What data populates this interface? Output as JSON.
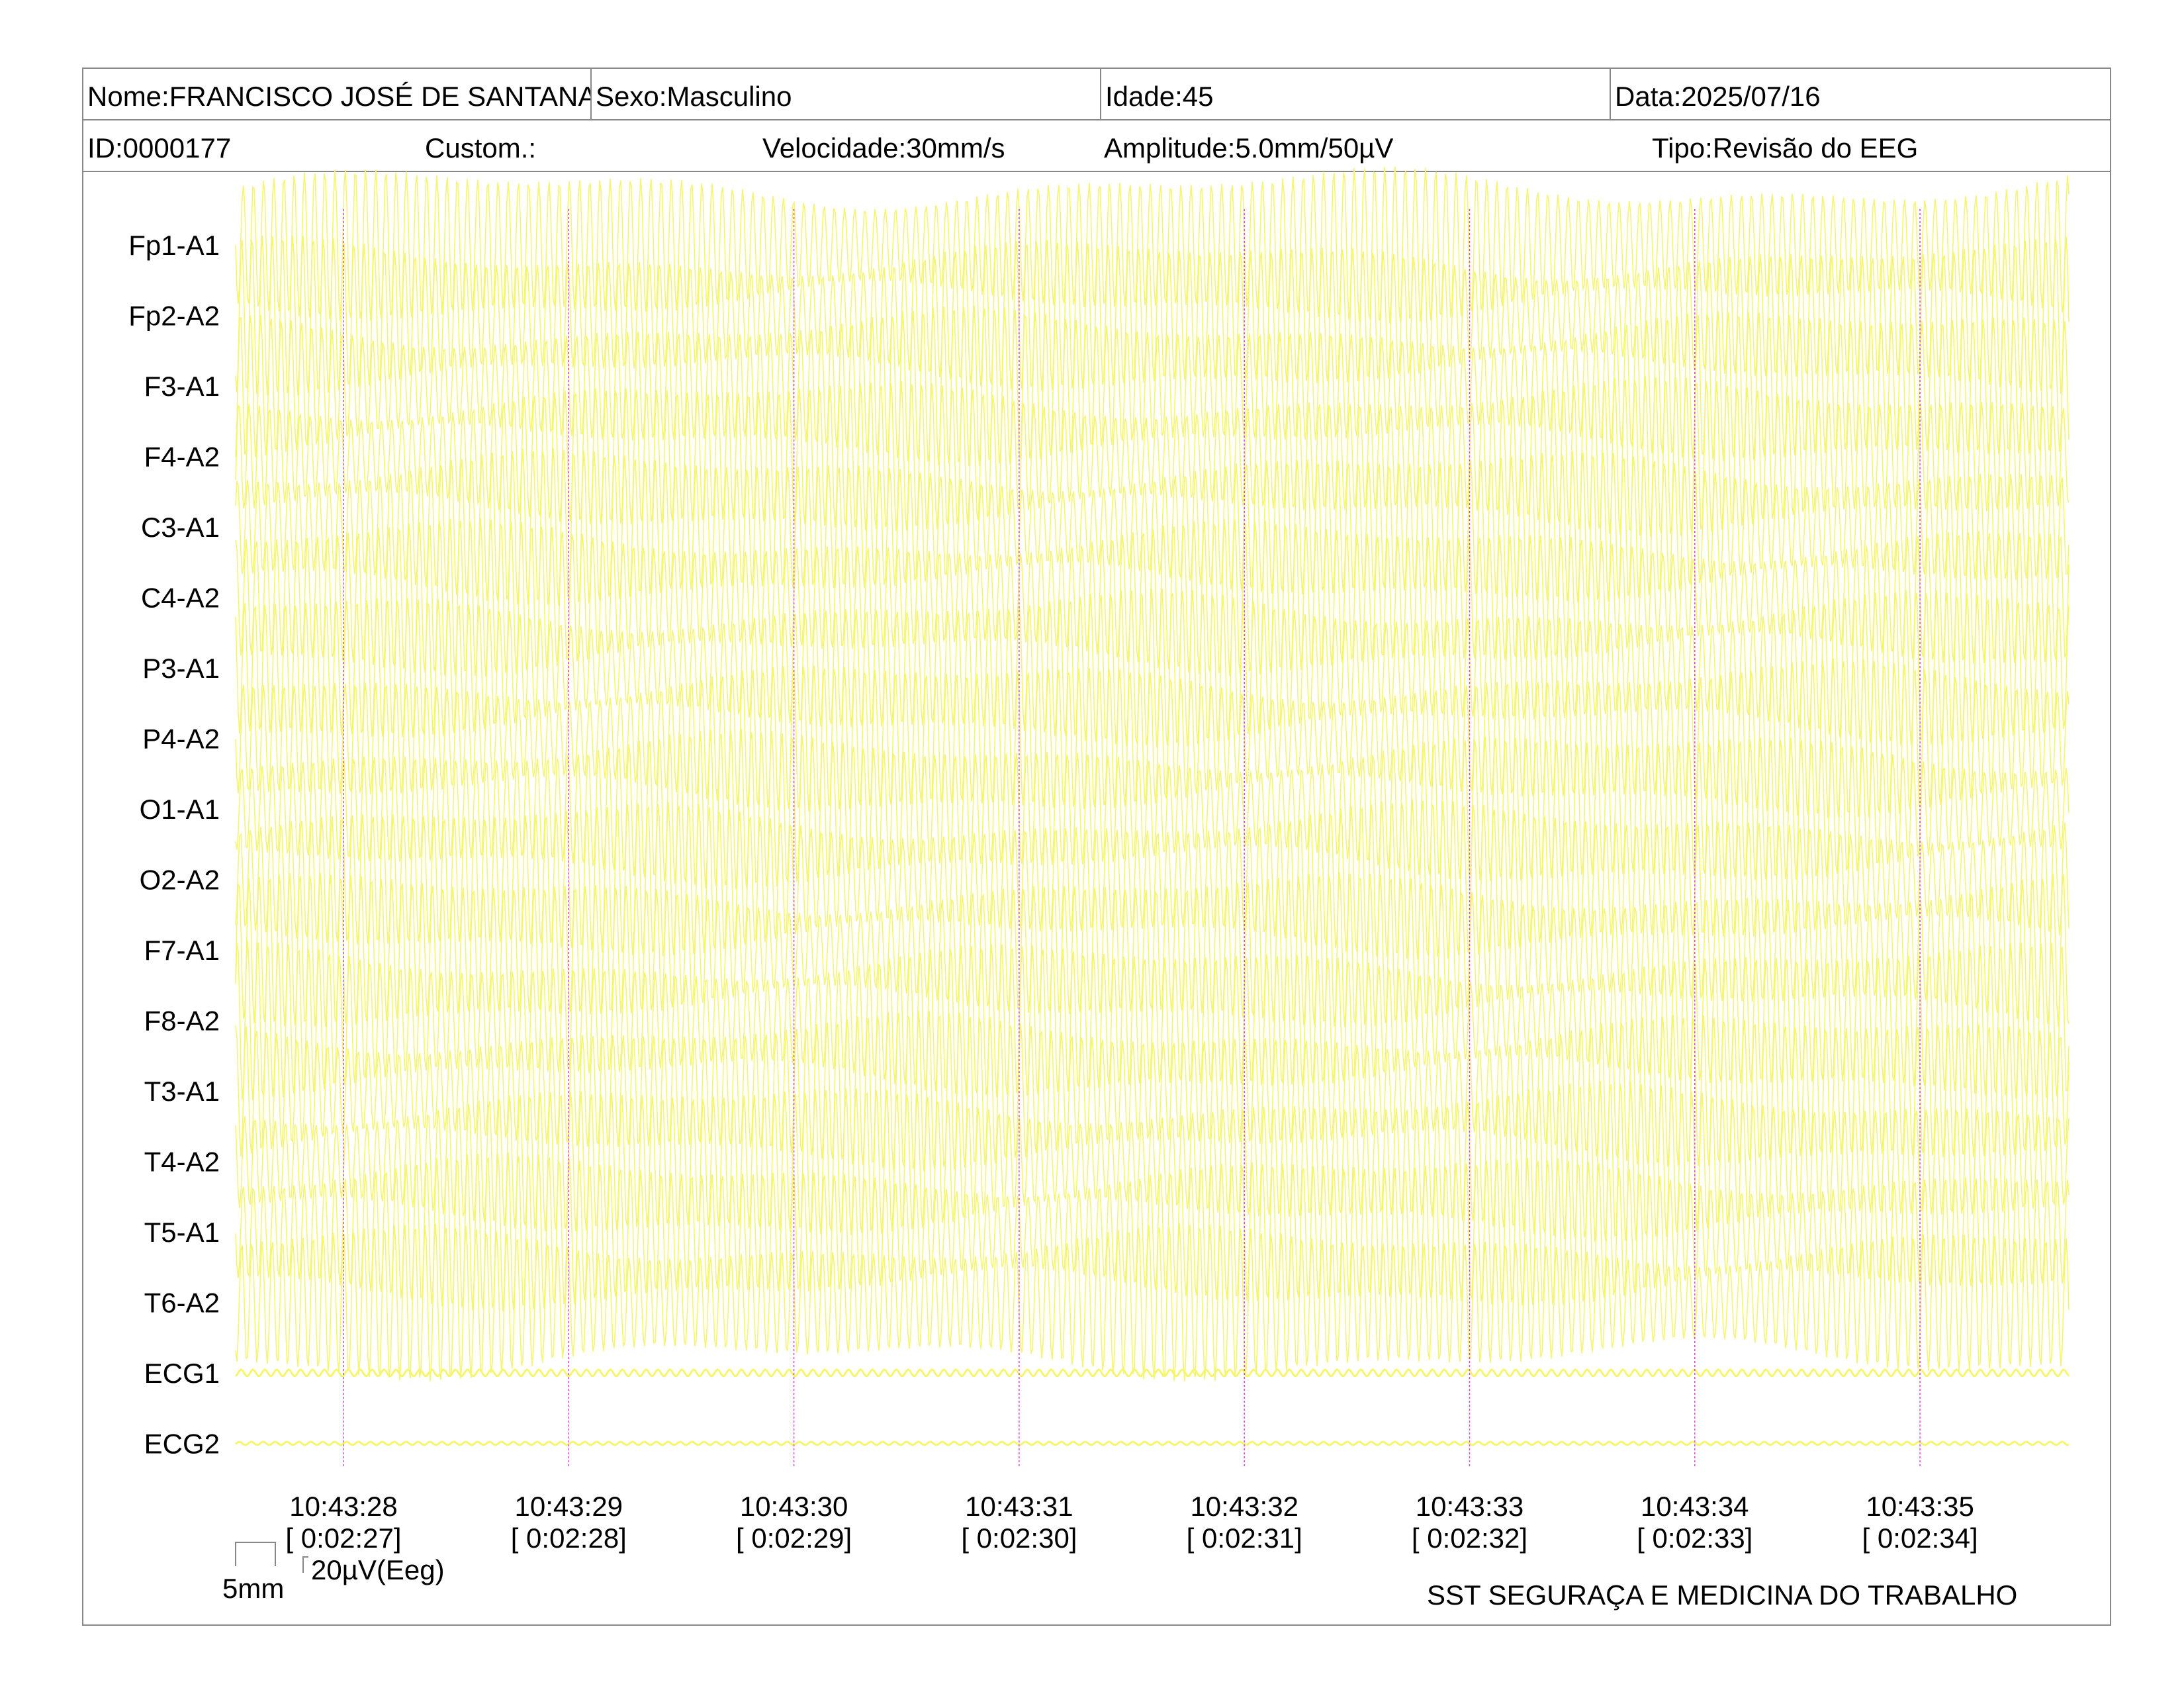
{
  "header": {
    "name": "Nome:FRANCISCO JOSÉ DE SANTANA",
    "sex": "Sexo:Masculino",
    "age": "Idade:45",
    "date": "Data:2025/07/16",
    "id": "ID:0000177",
    "custom": "Custom.:",
    "speed": "Velocidade:30mm/s",
    "amplitude": "Amplitude:5.0mm/50µV",
    "type": "Tipo:Revisão do EEG"
  },
  "channels": [
    "Fp1-A1",
    "Fp2-A2",
    "F3-A1",
    "F4-A2",
    "C3-A1",
    "C4-A2",
    "P3-A1",
    "P4-A2",
    "O1-A1",
    "O2-A2",
    "F7-A1",
    "F8-A2",
    "T3-A1",
    "T4-A2",
    "T5-A1",
    "T6-A2",
    "ECG1",
    "ECG2"
  ],
  "time_marks": [
    {
      "clock": "10:43:28",
      "elapsed": "[ 0:02:27]"
    },
    {
      "clock": "10:43:29",
      "elapsed": "[ 0:02:28]"
    },
    {
      "clock": "10:43:30",
      "elapsed": "[ 0:02:29]"
    },
    {
      "clock": "10:43:31",
      "elapsed": "[ 0:02:30]"
    },
    {
      "clock": "10:43:32",
      "elapsed": "[ 0:02:31]"
    },
    {
      "clock": "10:43:33",
      "elapsed": "[ 0:02:32]"
    },
    {
      "clock": "10:43:34",
      "elapsed": "[ 0:02:33]"
    },
    {
      "clock": "10:43:35",
      "elapsed": "[ 0:02:34]"
    }
  ],
  "scale": {
    "horizontal": "5mm",
    "vertical": "20µV(Eeg)"
  },
  "footer": {
    "organization": "SST SEGURAÇA E MEDICINA DO TRABALHO"
  },
  "colors": {
    "trace": "#f5f56e",
    "marker": "#e040e0",
    "border": "#888888"
  }
}
